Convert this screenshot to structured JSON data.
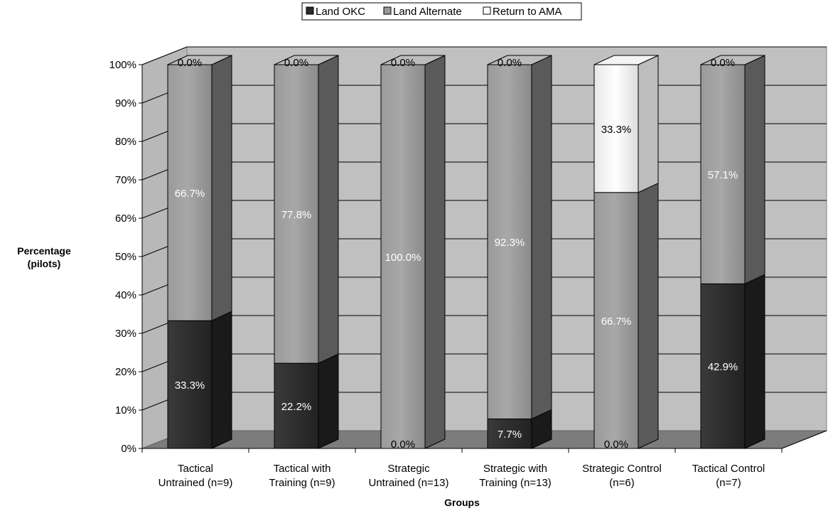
{
  "chart_data": {
    "type": "bar",
    "stacked": true,
    "percent": true,
    "categories": [
      [
        "Tactical",
        "Untrained (n=9)"
      ],
      [
        "Tactical with",
        "Training (n=9)"
      ],
      [
        "Strategic",
        "Untrained (n=13)"
      ],
      [
        "Strategic with",
        "Training (n=13)"
      ],
      [
        "Strategic Control",
        "(n=6)"
      ],
      [
        "Tactical Control",
        "(n=7)"
      ]
    ],
    "series": [
      {
        "name": "Land OKC",
        "color": "#2b2b2b",
        "values": [
          33.3,
          22.2,
          0.0,
          7.7,
          0.0,
          42.9
        ]
      },
      {
        "name": "Land Alternate",
        "color": "#999999",
        "values": [
          66.7,
          77.8,
          100.0,
          92.3,
          66.7,
          57.1
        ]
      },
      {
        "name": "Return to AMA",
        "color": "#ffffff",
        "values": [
          0.0,
          0.0,
          0.0,
          0.0,
          33.3,
          0.0
        ]
      }
    ],
    "data_labels": [
      [
        "33.3%",
        "66.7%",
        "0.0%"
      ],
      [
        "22.2%",
        "77.8%",
        "0.0%"
      ],
      [
        "0.0%",
        "100.0%",
        "0.0%"
      ],
      [
        "7.7%",
        "92.3%",
        "0.0%"
      ],
      [
        "0.0%",
        "66.7%",
        "33.3%"
      ],
      [
        "42.9%",
        "57.1%",
        "0.0%"
      ]
    ],
    "yticks": [
      "0%",
      "10%",
      "20%",
      "30%",
      "40%",
      "50%",
      "60%",
      "70%",
      "80%",
      "90%",
      "100%"
    ],
    "ylim": [
      0,
      100
    ],
    "ylabel": [
      "Percentage",
      "(pilots)"
    ],
    "xlabel": "Groups",
    "legend_position": "top-center",
    "grid": true
  }
}
